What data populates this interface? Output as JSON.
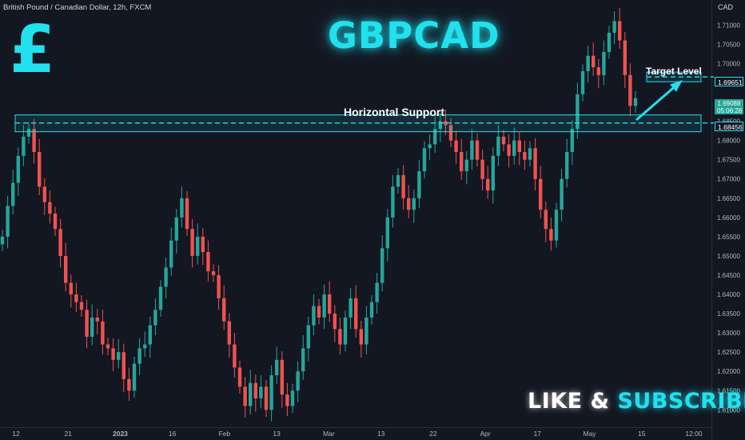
{
  "header": {
    "symbol_title": "British Pound / Canadian Dollar, 12h, FXCM",
    "title": "GBPCAD",
    "logo_glyph": "£",
    "currency": "CAD"
  },
  "annotations": {
    "support_label": "Horizontal Support",
    "target_label": "Target Level",
    "cta_word1": "LIKE & ",
    "cta_word2": "SUBSCRIBE"
  },
  "price_tags": {
    "target": "1.69651",
    "support": "1.68456",
    "last_price": "1.69088",
    "countdown": "05:06:28"
  },
  "colors": {
    "background": "#131722",
    "up": "#26a69a",
    "down": "#ef5350",
    "accent": "#22e1ee",
    "axis_text": "#b2b5be"
  },
  "chart_data": {
    "type": "candlestick",
    "title": "GBPCAD",
    "ylabel": "CAD",
    "ylim": [
      1.6055,
      1.7165
    ],
    "y_ticks": [
      "1.71000",
      "1.70500",
      "1.70000",
      "1.69500",
      "1.69000",
      "1.68500",
      "1.68000",
      "1.67500",
      "1.67000",
      "1.66500",
      "1.66000",
      "1.65500",
      "1.65000",
      "1.64500",
      "1.64000",
      "1.63500",
      "1.63000",
      "1.62500",
      "1.62000",
      "1.61500",
      "1.61000"
    ],
    "x_ticks": [
      "12",
      "21",
      "2023",
      "16",
      "Feb",
      "13",
      "Mar",
      "13",
      "22",
      "Apr",
      "17",
      "May",
      "15",
      "12:00"
    ],
    "levels": {
      "horizontal_support": 1.68456,
      "target_level": 1.69651
    },
    "path": [
      1.655,
      1.663,
      1.669,
      1.676,
      1.681,
      1.683,
      1.677,
      1.668,
      1.664,
      1.661,
      1.657,
      1.65,
      1.643,
      1.64,
      1.638,
      1.636,
      1.629,
      1.634,
      1.633,
      1.627,
      1.626,
      1.623,
      1.625,
      1.618,
      1.615,
      1.622,
      1.626,
      1.627,
      1.632,
      1.636,
      1.642,
      1.647,
      1.654,
      1.66,
      1.665,
      1.657,
      1.65,
      1.655,
      1.651,
      1.646,
      1.645,
      1.639,
      1.633,
      1.627,
      1.621,
      1.616,
      1.611,
      1.617,
      1.613,
      1.616,
      1.61,
      1.619,
      1.623,
      1.614,
      1.611,
      1.615,
      1.62,
      1.626,
      1.632,
      1.637,
      1.634,
      1.64,
      1.635,
      1.631,
      1.627,
      1.634,
      1.639,
      1.631,
      1.627,
      1.634,
      1.638,
      1.643,
      1.652,
      1.66,
      1.668,
      1.671,
      1.665,
      1.662,
      1.665,
      1.672,
      1.678,
      1.679,
      1.683,
      1.685,
      1.684,
      1.68,
      1.677,
      1.672,
      1.675,
      1.68,
      1.675,
      1.67,
      1.667,
      1.676,
      1.681,
      1.679,
      1.676,
      1.68,
      1.677,
      1.675,
      1.678,
      1.67,
      1.662,
      1.657,
      1.654,
      1.662,
      1.67,
      1.677,
      1.683,
      1.692,
      1.698,
      1.702,
      1.699,
      1.697,
      1.703,
      1.708,
      1.711,
      1.706,
      1.697,
      1.689,
      1.691
    ]
  }
}
